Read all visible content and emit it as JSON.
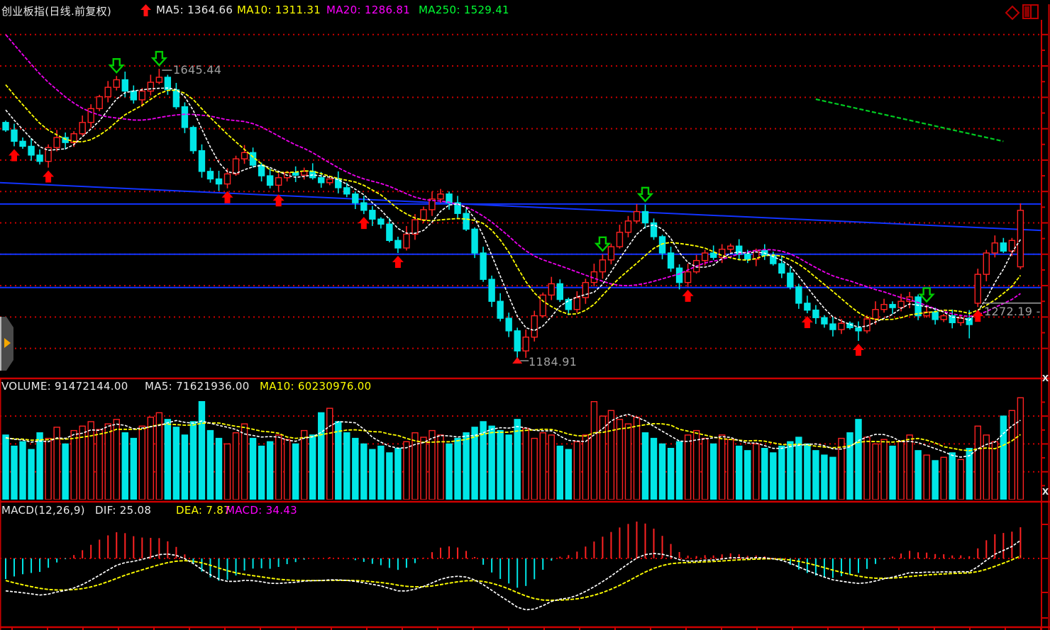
{
  "header": {
    "title": "创业板指(日线.前复权)",
    "trend_arrow_icon": "red-up-arrow",
    "ma5_label": "MA5: 1364.66",
    "ma10_label": "MA10: 1311.31",
    "ma20_label": "MA20: 1286.81",
    "ma250_label": "MA250: 1529.41",
    "diamond_icon": "diamond-marker",
    "split_window_icon": "split-window"
  },
  "volume_pane": {
    "volume_label": "VOLUME: 91472144.00",
    "ma5_label": "MA5: 71621936.00",
    "ma10_label": "MA10: 60230976.00",
    "close_icon": "X"
  },
  "macd_pane": {
    "params_label": "MACD(12,26,9)",
    "dif_label": "DIF: 25.08",
    "dea_label": "DEA: 7.87",
    "macd_label": "MACD: 34.43",
    "close_icon": "X"
  },
  "annotations": {
    "high_label": "1645.44",
    "low_label": "1184.91",
    "price_line_label": "1272.19 -"
  },
  "colors": {
    "up": "#ff2222",
    "down": "#00e6e6",
    "ma5": "#ffffff",
    "ma10": "#ffff00",
    "ma20": "#ee00ee",
    "ma250": "#00cc22",
    "grid": "#cc0000",
    "blue_line": "#1133ff",
    "gray_line": "#999999",
    "buy_arrow": "#ff0000",
    "sell_arrow": "#00cc00",
    "border": "#cc0000"
  },
  "chart_data": {
    "type": "candlestick+volume+macd",
    "title": "创业板指(日线.前复权)",
    "periodicity": "daily, forward-adjusted",
    "price_axis": {
      "min": 1150,
      "max": 1706,
      "gridlines": [
        1200,
        1250,
        1300,
        1350,
        1400,
        1450,
        1500,
        1550,
        1600,
        1650,
        1700
      ]
    },
    "volume_axis": {
      "unit": "millions",
      "max": 105,
      "gridlines": [
        25,
        50,
        75
      ]
    },
    "closes": [
      1548,
      1530,
      1522,
      1508,
      1498,
      1520,
      1536,
      1528,
      1542,
      1560,
      1582,
      1601,
      1616,
      1628,
      1610,
      1596,
      1610,
      1624,
      1632,
      1612,
      1585,
      1552,
      1515,
      1482,
      1470,
      1462,
      1478,
      1502,
      1512,
      1492,
      1475,
      1460,
      1472,
      1480,
      1476,
      1482,
      1472,
      1464,
      1470,
      1456,
      1446,
      1432,
      1420,
      1406,
      1398,
      1372,
      1360,
      1382,
      1405,
      1421,
      1438,
      1446,
      1432,
      1415,
      1390,
      1352,
      1310,
      1275,
      1248,
      1228,
      1196,
      1218,
      1252,
      1285,
      1303,
      1278,
      1262,
      1281,
      1305,
      1322,
      1341,
      1362,
      1385,
      1403,
      1418,
      1400,
      1378,
      1352,
      1328,
      1305,
      1322,
      1340,
      1352,
      1345,
      1358,
      1363,
      1350,
      1342,
      1356,
      1348,
      1335,
      1320,
      1298,
      1272,
      1261,
      1249,
      1239,
      1230,
      1240,
      1233,
      1228,
      1247,
      1262,
      1270,
      1265,
      1275,
      1282,
      1252,
      1258,
      1246,
      1252,
      1241,
      1248,
      1238,
      1318,
      1352,
      1368,
      1355,
      1372,
      1420
    ],
    "volumes": [
      58,
      48,
      52,
      45,
      60,
      55,
      65,
      50,
      62,
      66,
      70,
      63,
      68,
      72,
      60,
      55,
      66,
      74,
      78,
      72,
      65,
      58,
      70,
      88,
      62,
      55,
      50,
      60,
      68,
      55,
      48,
      52,
      58,
      54,
      50,
      62,
      58,
      78,
      82,
      70,
      60,
      55,
      50,
      45,
      48,
      42,
      46,
      52,
      60,
      56,
      62,
      58,
      50,
      55,
      60,
      65,
      70,
      66,
      62,
      58,
      72,
      64,
      55,
      60,
      58,
      48,
      45,
      52,
      58,
      88,
      75,
      80,
      72,
      68,
      74,
      60,
      55,
      50,
      46,
      52,
      58,
      62,
      55,
      50,
      58,
      54,
      48,
      44,
      50,
      46,
      42,
      48,
      52,
      56,
      50,
      44,
      40,
      38,
      55,
      60,
      72,
      56,
      50,
      54,
      48,
      52,
      58,
      44,
      40,
      35,
      38,
      42,
      36,
      46,
      66,
      58,
      52,
      75,
      80,
      91.47
    ],
    "first_open": 1560,
    "open_overrides": {
      "114": 1272,
      "119": 1330
    },
    "high_overrides": {
      "18": 1645.44,
      "74": 1430
    },
    "low_overrides": {
      "60": 1184.91,
      "100": 1212,
      "113": 1216
    },
    "extreme_high": {
      "index": 18,
      "value": 1645.44
    },
    "extreme_low": {
      "index": 60,
      "value": 1184.91
    },
    "markers": {
      "buy": [
        1,
        5,
        26,
        32,
        42,
        46,
        80,
        94,
        100,
        114
      ],
      "sell": [
        13,
        18,
        70,
        75,
        108
      ]
    },
    "trend_lines": [
      {
        "type": "flat",
        "price": 1430
      },
      {
        "type": "slope",
        "from_price": 1464,
        "to_price": 1388
      },
      {
        "type": "flat",
        "price": 1350
      },
      {
        "type": "flat",
        "price": 1297
      }
    ],
    "price_level_line": {
      "value": 1272.19,
      "start_index": 114
    },
    "ma250_segment": {
      "from_index": 95,
      "to_index": 117,
      "from_value": 1597,
      "to_value": 1530
    },
    "legend_values": {
      "ma5": 1364.66,
      "ma10": 1311.31,
      "ma20": 1286.81,
      "ma250": 1529.41,
      "volume": 91472144,
      "vol_ma5": 71621936,
      "vol_ma10": 60230976,
      "dif": 25.08,
      "dea": 7.87,
      "macd": 34.43
    }
  }
}
